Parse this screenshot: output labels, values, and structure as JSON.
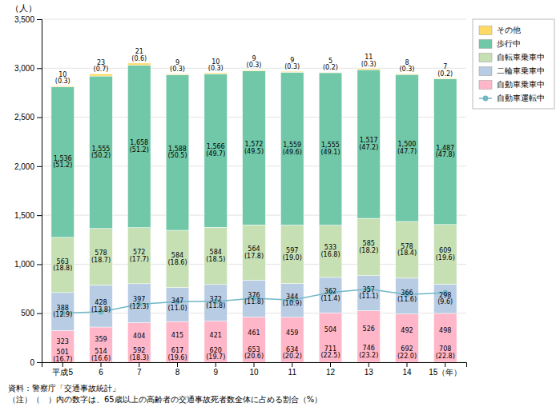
{
  "chart_data": {
    "type": "bar",
    "stacked": true,
    "data_labels": true,
    "grid": true,
    "legend": "upper right",
    "ylabel": "（人）",
    "annotations": [
      "資料：警察庁「交通事故統計」",
      "（注）（　）内の数字は、65歳以上の高齢者の交通事故死者数全体に占める割合（%）"
    ],
    "categories": [
      "平成5",
      "6",
      "7",
      "8",
      "9",
      "10",
      "11",
      "12",
      "13",
      "14",
      "15（年）"
    ],
    "ylim": [
      0,
      3500
    ],
    "yticks": [
      0,
      500,
      {
        "value": 1000,
        "label": "1,000"
      },
      {
        "value": 1500,
        "label": "1,500"
      },
      {
        "value": 2000,
        "label": "2,000"
      },
      {
        "value": 2500,
        "label": "2,500"
      },
      {
        "value": 3000,
        "label": "3,000"
      },
      {
        "value": 3500,
        "label": "3,500"
      }
    ],
    "series": [
      {
        "name": "自動車乗車中",
        "color": "#ffb6c8",
        "values": [
          323,
          359,
          404,
          415,
          421,
          461,
          459,
          504,
          526,
          492,
          498
        ]
      },
      {
        "name": "二輪車乗車中",
        "color": "#b8cce4",
        "values": [
          388,
          428,
          397,
          347,
          372,
          376,
          344,
          362,
          357,
          366,
          298
        ],
        "shares": [
          12.9,
          13.8,
          12.3,
          11.0,
          11.8,
          11.8,
          10.9,
          11.4,
          11.1,
          11.6,
          9.6
        ],
        "share_labels": [
          "(12.9)",
          "(13.8)",
          "(12.3)",
          "(11.0)",
          "(11.8)",
          "(11.8)",
          "(10.9)",
          "(11.4)",
          "(11.1)",
          "(11.6)",
          "(9.6)"
        ]
      },
      {
        "name": "自転車乗車中",
        "color": "#c6e0b4",
        "values": [
          563,
          578,
          572,
          584,
          584,
          564,
          597,
          533,
          585,
          578,
          609
        ],
        "shares": [
          18.8,
          18.7,
          17.7,
          18.6,
          18.5,
          17.8,
          19.0,
          16.8,
          18.2,
          18.4,
          19.6
        ],
        "share_labels": [
          "(18.8)",
          "(18.7)",
          "(17.7)",
          "(18.6)",
          "(18.5)",
          "(17.8)",
          "(19.0)",
          "(16.8)",
          "(18.2)",
          "(18.4)",
          "(19.6)"
        ]
      },
      {
        "name": "歩行中",
        "color": "#70c8a8",
        "values": [
          1536,
          1555,
          1658,
          1588,
          1566,
          1572,
          1559,
          1555,
          1517,
          1500,
          1487
        ],
        "value_labels": [
          "1,536",
          "1,555",
          "1,658",
          "1,588",
          "1,566",
          "1,572",
          "1,559",
          "1,555",
          "1,517",
          "1,500",
          "1,487"
        ],
        "shares": [
          51.2,
          50.2,
          51.2,
          50.5,
          49.7,
          49.5,
          49.6,
          49.1,
          47.2,
          47.7,
          47.8
        ],
        "share_labels": [
          "(51.2)",
          "(50.2)",
          "(51.2)",
          "(50.5)",
          "(49.7)",
          "(49.5)",
          "(49.6)",
          "(49.1)",
          "(47.2)",
          "(47.7)",
          "(47.8)"
        ]
      },
      {
        "name": "その他",
        "color": "#ffd966",
        "values": [
          10,
          23,
          21,
          9,
          10,
          9,
          9,
          5,
          11,
          8,
          7
        ],
        "shares": [
          0.3,
          0.7,
          0.6,
          0.3,
          0.3,
          0.3,
          0.3,
          0.2,
          0.3,
          0.3,
          0.2
        ],
        "share_labels": [
          "(0.3)",
          "(0.7)",
          "(0.6)",
          "(0.3)",
          "(0.3)",
          "(0.3)",
          "(0.3)",
          "(0.2)",
          "(0.3)",
          "(0.3)",
          "(0.2)"
        ]
      },
      {
        "name": "自動車運転中",
        "type": "line",
        "color": "#70b8c8",
        "marker": "circle",
        "values": [
          501,
          514,
          592,
          617,
          620,
          653,
          634,
          711,
          746,
          692,
          708
        ],
        "shares": [
          16.7,
          16.6,
          18.3,
          19.6,
          19.7,
          20.6,
          20.2,
          22.5,
          23.2,
          22.0,
          22.8
        ],
        "share_labels": [
          "(16.7)",
          "(16.6)",
          "(18.3)",
          "(19.6)",
          "(19.7)",
          "(20.6)",
          "(20.2)",
          "(22.5)",
          "(23.2)",
          "(22.0)",
          "(22.8)"
        ]
      }
    ]
  }
}
